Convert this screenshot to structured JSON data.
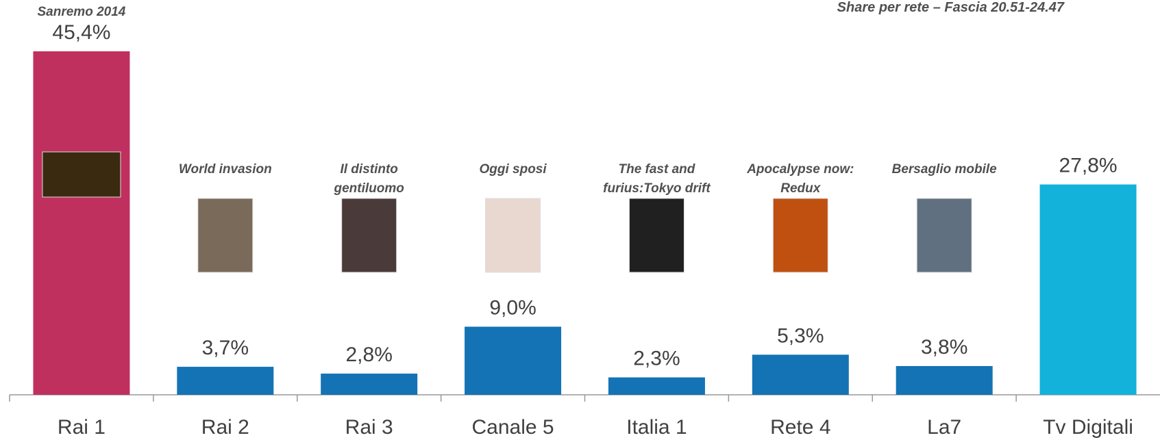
{
  "chart_data": {
    "type": "bar",
    "title": "Share per rete – Fascia 20.51-24.47",
    "categories": [
      "Rai 1",
      "Rai 2",
      "Rai 3",
      "Canale 5",
      "Italia 1",
      "Rete 4",
      "La7",
      "Tv Digitali"
    ],
    "values": [
      45.4,
      3.7,
      2.8,
      9.0,
      2.3,
      5.3,
      3.8,
      27.8
    ],
    "value_labels": [
      "45,4%",
      "3,7%",
      "2,8%",
      "9,0%",
      "2,3%",
      "5,3%",
      "3,8%",
      "27,8%"
    ],
    "colors": [
      "#c0305f",
      "#1473b5",
      "#1473b5",
      "#1473b5",
      "#1473b5",
      "#1473b5",
      "#1473b5",
      "#12b2da"
    ],
    "annotations": [
      "Sanremo 2014",
      "World invasion",
      "Il distinto gentiluomo",
      "Oggi sposi",
      "The fast and furius:Tokyo drift",
      "Apocalypse now: Redux",
      "Bersaglio mobile",
      null
    ]
  }
}
